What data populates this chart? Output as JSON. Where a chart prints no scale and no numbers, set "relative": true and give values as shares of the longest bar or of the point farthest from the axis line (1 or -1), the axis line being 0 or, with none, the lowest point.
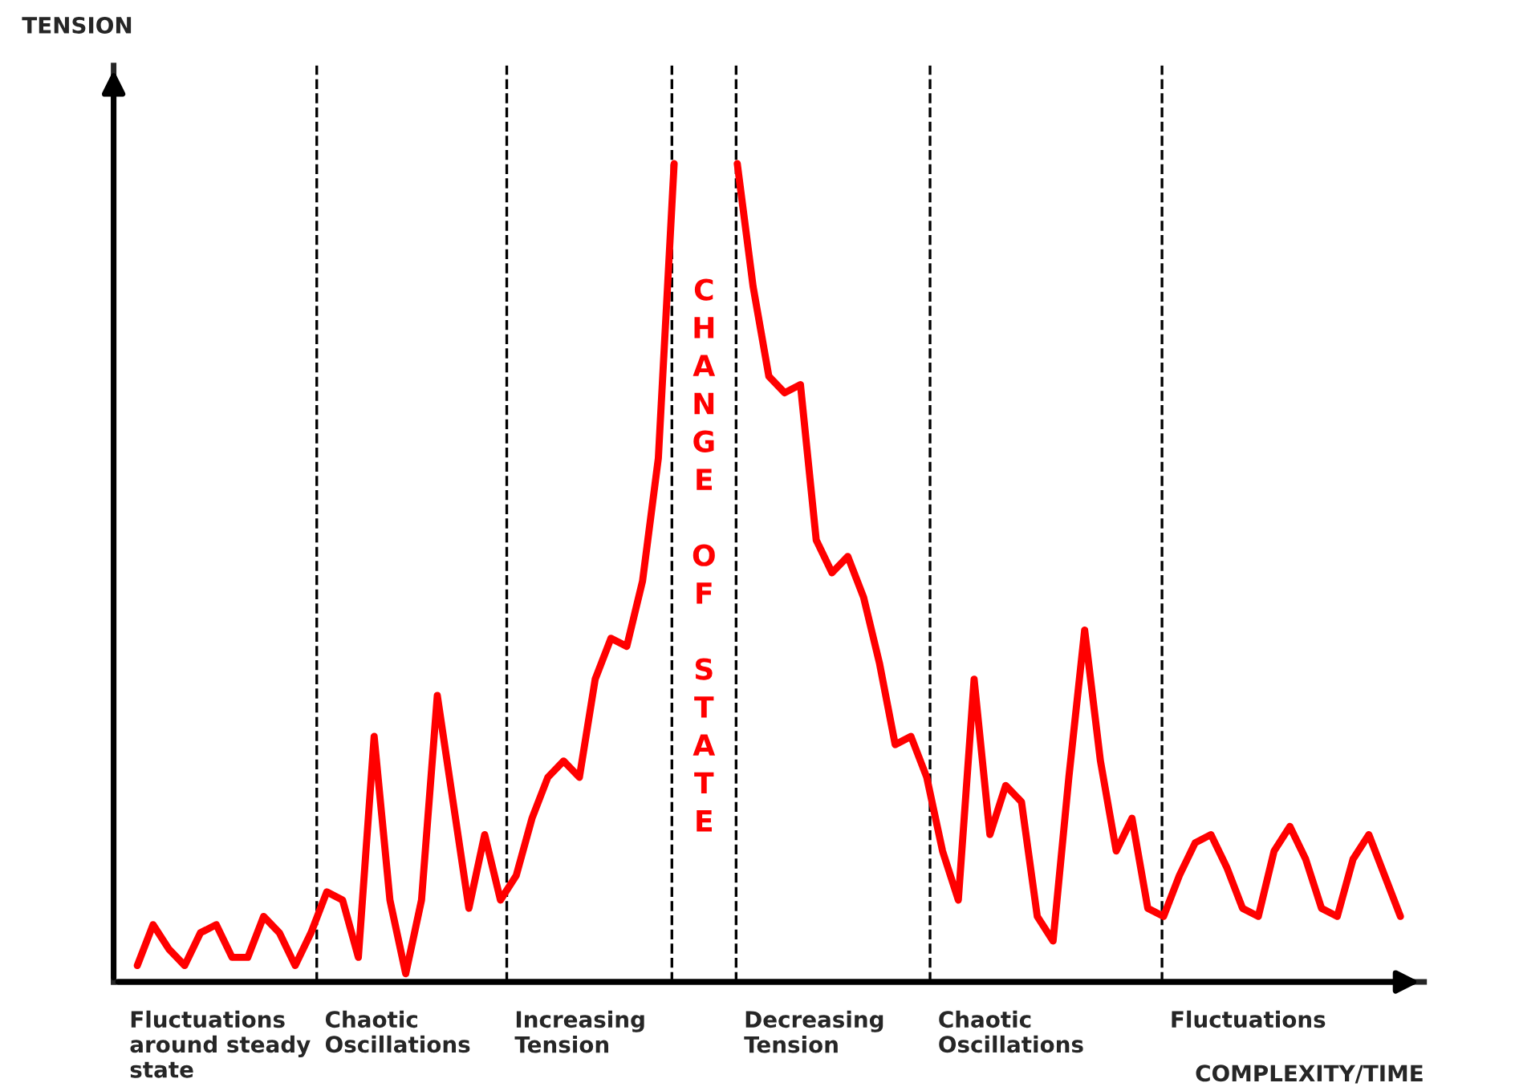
{
  "chart_data": {
    "type": "line",
    "relative": true,
    "grid": "x",
    "marker": "none",
    "line_style": "solid",
    "xlabel": "COMPLEXITY/TIME",
    "categories": [
      null,
      null,
      null,
      null,
      null,
      null,
      null,
      null,
      null,
      null,
      null,
      null,
      null,
      null,
      null,
      null,
      null,
      null,
      null,
      null,
      null,
      null,
      null,
      null,
      null,
      null,
      null,
      null,
      null,
      null,
      null,
      null,
      null,
      null,
      null,
      null,
      null,
      null,
      null,
      null,
      null,
      null,
      null,
      null,
      null,
      null,
      null,
      null,
      null,
      null,
      null,
      null,
      null,
      null,
      null,
      null,
      null,
      null,
      null,
      null,
      null,
      null,
      null,
      null,
      null,
      null,
      null,
      null,
      null,
      null,
      null,
      null,
      null,
      null,
      null,
      null,
      null,
      null,
      null,
      null,
      null
    ],
    "series": [
      {
        "color": "#ff0000",
        "values": [
          0.02,
          0.07,
          0.04,
          0.02,
          0.06,
          0.07,
          0.03,
          0.03,
          0.08,
          0.06,
          0.02,
          0.06,
          0.11,
          0.1,
          0.03,
          0.3,
          0.1,
          0.01,
          0.1,
          0.35,
          0.22,
          0.09,
          0.18,
          0.1,
          0.13,
          0.2,
          0.25,
          0.27,
          0.25,
          0.37,
          0.42,
          0.41,
          0.49,
          0.64,
          1.0,
          null,
          null,
          null,
          null,
          null,
          null,
          null,
          null,
          null,
          null,
          null,
          null,
          null,
          null,
          null,
          null,
          null,
          null,
          null,
          null,
          null,
          null,
          null,
          null,
          null,
          null,
          null,
          null,
          null,
          null,
          null,
          null,
          null,
          null,
          null,
          null,
          null,
          null,
          null,
          null,
          null,
          null,
          null,
          null,
          null,
          null
        ]
      },
      {
        "color": "#ff0000",
        "values": [
          null,
          null,
          null,
          null,
          null,
          null,
          null,
          null,
          null,
          null,
          null,
          null,
          null,
          null,
          null,
          null,
          null,
          null,
          null,
          null,
          null,
          null,
          null,
          null,
          null,
          null,
          null,
          null,
          null,
          null,
          null,
          null,
          null,
          null,
          null,
          null,
          null,
          null,
          1.0,
          0.85,
          0.74,
          0.72,
          0.73,
          0.54,
          0.5,
          0.52,
          0.47,
          0.39,
          0.29,
          0.3,
          0.25,
          0.16,
          0.1,
          0.37,
          0.18,
          0.24,
          0.22,
          0.08,
          0.05,
          0.25,
          0.43,
          0.27,
          0.16,
          0.2,
          0.09,
          0.08,
          0.13,
          0.17,
          0.18,
          0.14,
          0.09,
          0.08,
          0.16,
          0.19,
          0.15,
          0.09,
          0.08,
          0.15,
          0.18,
          0.13,
          0.08
        ]
      }
    ],
    "annotations": [
      "Fluctuations\naround steady\nstate",
      "Chaotic\nOscillations",
      "Increasing\nTension",
      "CHANGE OF STATE",
      "Decreasing\nTension",
      "Chaotic\nOscillations",
      "Fluctuations",
      "TENSION"
    ]
  }
}
